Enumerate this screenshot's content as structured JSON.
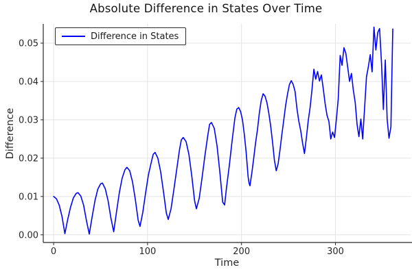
{
  "chart_data": {
    "type": "line",
    "title": "Absolute Difference in States Over Time",
    "xlabel": "Time",
    "ylabel": "Difference",
    "grid": true,
    "legend_position": "top-left",
    "xlim": [
      -11,
      380
    ],
    "ylim": [
      -0.002,
      0.055
    ],
    "xticks": [
      0,
      100,
      200,
      300
    ],
    "xtick_labels": [
      "0",
      "100",
      "200",
      "300"
    ],
    "yticks": [
      0.0,
      0.01,
      0.02,
      0.03,
      0.04,
      0.05
    ],
    "ytick_labels": [
      "0.00",
      "0.01",
      "0.02",
      "0.03",
      "0.04",
      "0.05"
    ],
    "colors": {
      "line": "#0000ff",
      "grid": "#e3e3e3",
      "axis": "#262626",
      "tick_text": "#262626",
      "title_text": "#141414",
      "background": "#ffffff",
      "legend_border": "#2b2b2b"
    },
    "legend": {
      "entries": [
        {
          "label": "Difference in States",
          "color": "#0000ff"
        }
      ]
    },
    "series": [
      {
        "name": "Difference in States",
        "color": "#0000ff",
        "points": [
          [
            0,
            0.01
          ],
          [
            3,
            0.0094
          ],
          [
            6,
            0.0077
          ],
          [
            9,
            0.0047
          ],
          [
            12,
            0.0003
          ],
          [
            15,
            0.004
          ],
          [
            18,
            0.0072
          ],
          [
            21,
            0.0096
          ],
          [
            24,
            0.0108
          ],
          [
            26,
            0.011
          ],
          [
            29,
            0.0101
          ],
          [
            32,
            0.0077
          ],
          [
            35,
            0.0037
          ],
          [
            38,
            0.0002
          ],
          [
            41,
            0.0047
          ],
          [
            44,
            0.0089
          ],
          [
            47,
            0.0119
          ],
          [
            50,
            0.0133
          ],
          [
            52,
            0.0135
          ],
          [
            55,
            0.012
          ],
          [
            58,
            0.0089
          ],
          [
            61,
            0.0044
          ],
          [
            64,
            0.0008
          ],
          [
            67,
            0.006
          ],
          [
            70,
            0.011
          ],
          [
            73,
            0.0148
          ],
          [
            76,
            0.017
          ],
          [
            78,
            0.0176
          ],
          [
            81,
            0.0167
          ],
          [
            84,
            0.0138
          ],
          [
            87,
            0.0092
          ],
          [
            90,
            0.0038
          ],
          [
            92,
            0.0022
          ],
          [
            95,
            0.0059
          ],
          [
            98,
            0.011
          ],
          [
            101,
            0.0157
          ],
          [
            104,
            0.019
          ],
          [
            106,
            0.021
          ],
          [
            108,
            0.0215
          ],
          [
            111,
            0.02
          ],
          [
            114,
            0.0164
          ],
          [
            117,
            0.0112
          ],
          [
            120,
            0.0057
          ],
          [
            122,
            0.004
          ],
          [
            125,
            0.0068
          ],
          [
            128,
            0.0118
          ],
          [
            131,
            0.017
          ],
          [
            134,
            0.0222
          ],
          [
            136,
            0.0248
          ],
          [
            138,
            0.0254
          ],
          [
            141,
            0.0243
          ],
          [
            144,
            0.021
          ],
          [
            147,
            0.0155
          ],
          [
            150,
            0.009
          ],
          [
            152,
            0.0068
          ],
          [
            155,
            0.0095
          ],
          [
            158,
            0.0148
          ],
          [
            161,
            0.0205
          ],
          [
            164,
            0.0258
          ],
          [
            166,
            0.0288
          ],
          [
            168,
            0.0293
          ],
          [
            171,
            0.0278
          ],
          [
            174,
            0.0232
          ],
          [
            177,
            0.0163
          ],
          [
            180,
            0.0085
          ],
          [
            182,
            0.0078
          ],
          [
            184,
            0.0122
          ],
          [
            187,
            0.018
          ],
          [
            190,
            0.0245
          ],
          [
            193,
            0.0305
          ],
          [
            195,
            0.0328
          ],
          [
            197,
            0.0332
          ],
          [
            199,
            0.0322
          ],
          [
            201,
            0.03
          ],
          [
            203,
            0.0262
          ],
          [
            205,
            0.0215
          ],
          [
            207,
            0.0152
          ],
          [
            208,
            0.0135
          ],
          [
            209,
            0.0128
          ],
          [
            211,
            0.0162
          ],
          [
            213,
            0.02
          ],
          [
            215,
            0.024
          ],
          [
            217,
            0.0275
          ],
          [
            219,
            0.0318
          ],
          [
            221,
            0.035
          ],
          [
            223,
            0.0368
          ],
          [
            225,
            0.0362
          ],
          [
            227,
            0.0345
          ],
          [
            229,
            0.0318
          ],
          [
            231,
            0.0285
          ],
          [
            233,
            0.0242
          ],
          [
            235,
            0.0195
          ],
          [
            237,
            0.0167
          ],
          [
            239,
            0.0186
          ],
          [
            241,
            0.0222
          ],
          [
            243,
            0.0262
          ],
          [
            245,
            0.03
          ],
          [
            247,
            0.0338
          ],
          [
            249,
            0.0368
          ],
          [
            251,
            0.0392
          ],
          [
            253,
            0.0402
          ],
          [
            255,
            0.0392
          ],
          [
            257,
            0.0374
          ],
          [
            259,
            0.033
          ],
          [
            261,
            0.0296
          ],
          [
            263,
            0.0272
          ],
          [
            265,
            0.024
          ],
          [
            267,
            0.0212
          ],
          [
            269,
            0.0252
          ],
          [
            271,
            0.0298
          ],
          [
            273,
            0.0332
          ],
          [
            275,
            0.0378
          ],
          [
            277,
            0.0432
          ],
          [
            279,
            0.0406
          ],
          [
            281,
            0.0426
          ],
          [
            283,
            0.0401
          ],
          [
            285,
            0.0417
          ],
          [
            287,
            0.0382
          ],
          [
            289,
            0.0342
          ],
          [
            291,
            0.0312
          ],
          [
            293,
            0.0296
          ],
          [
            295,
            0.025
          ],
          [
            297,
            0.0268
          ],
          [
            299,
            0.0254
          ],
          [
            301,
            0.0302
          ],
          [
            303,
            0.0355
          ],
          [
            305,
            0.0468
          ],
          [
            307,
            0.0442
          ],
          [
            309,
            0.0488
          ],
          [
            311,
            0.0474
          ],
          [
            313,
            0.0438
          ],
          [
            315,
            0.04
          ],
          [
            317,
            0.0421
          ],
          [
            319,
            0.0378
          ],
          [
            321,
            0.0345
          ],
          [
            323,
            0.0288
          ],
          [
            325,
            0.0256
          ],
          [
            327,
            0.0302
          ],
          [
            329,
            0.025
          ],
          [
            331,
            0.0332
          ],
          [
            333,
            0.0412
          ],
          [
            335,
            0.0438
          ],
          [
            337,
            0.047
          ],
          [
            339,
            0.0425
          ],
          [
            341,
            0.0542
          ],
          [
            343,
            0.0482
          ],
          [
            345,
            0.0528
          ],
          [
            347,
            0.0538
          ],
          [
            349,
            0.0448
          ],
          [
            351,
            0.0327
          ],
          [
            353,
            0.0456
          ],
          [
            355,
            0.0302
          ],
          [
            357,
            0.0252
          ],
          [
            359,
            0.0282
          ],
          [
            361,
            0.0537
          ]
        ]
      }
    ]
  }
}
